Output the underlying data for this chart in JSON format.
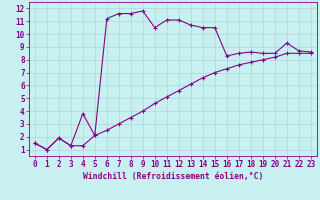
{
  "xlabel": "Windchill (Refroidissement éolien,°C)",
  "xlim": [
    -0.5,
    23.5
  ],
  "ylim": [
    0.5,
    12.5
  ],
  "xticks": [
    0,
    1,
    2,
    3,
    4,
    5,
    6,
    7,
    8,
    9,
    10,
    11,
    12,
    13,
    14,
    15,
    16,
    17,
    18,
    19,
    20,
    21,
    22,
    23
  ],
  "yticks": [
    1,
    2,
    3,
    4,
    5,
    6,
    7,
    8,
    9,
    10,
    11,
    12
  ],
  "bg_color": "#c8f0f0",
  "grid_color": "#a8d8d8",
  "line_color": "#880088",
  "line1_x": [
    0,
    1,
    2,
    3,
    4,
    5,
    6,
    7,
    8,
    9,
    10,
    11,
    12,
    13,
    14,
    15,
    16,
    17,
    18,
    19,
    20,
    21,
    22,
    23
  ],
  "line1_y": [
    1.5,
    1.0,
    1.9,
    1.3,
    1.3,
    2.1,
    11.2,
    11.6,
    11.6,
    11.8,
    10.5,
    11.1,
    11.1,
    10.7,
    10.5,
    10.5,
    8.3,
    8.5,
    8.6,
    8.5,
    8.5,
    9.3,
    8.7,
    8.6
  ],
  "line2_x": [
    0,
    1,
    2,
    3,
    4,
    5,
    6,
    7,
    8,
    9,
    10,
    11,
    12,
    13,
    14,
    15,
    16,
    17,
    18,
    19,
    20,
    21,
    22,
    23
  ],
  "line2_y": [
    1.5,
    1.0,
    1.9,
    1.3,
    3.8,
    2.1,
    2.5,
    3.0,
    3.5,
    4.0,
    4.6,
    5.1,
    5.6,
    6.1,
    6.6,
    7.0,
    7.3,
    7.6,
    7.8,
    8.0,
    8.2,
    8.5,
    8.5,
    8.5
  ],
  "tick_fontsize": 5.5,
  "xlabel_fontsize": 5.8,
  "marker_size": 2.5,
  "line_width": 0.8
}
